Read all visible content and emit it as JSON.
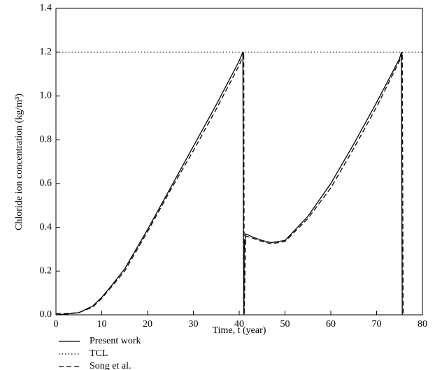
{
  "chart_data": {
    "type": "line",
    "xlabel": "Time, t (year)",
    "ylabel": "Chloride ion concentration (kg/m³)",
    "xlim": [
      0,
      80
    ],
    "ylim": [
      0,
      1.4
    ],
    "xticks": [
      0,
      10,
      20,
      30,
      40,
      50,
      60,
      70,
      80
    ],
    "yticks": [
      {
        "value": 0,
        "label": "0.0"
      },
      0.2,
      0.4,
      0.6,
      0.8,
      {
        "value": 1,
        "label": "1.0"
      },
      1.2,
      1.4
    ],
    "series": [
      {
        "name": "Present work",
        "color": "#000000",
        "dash": "solid",
        "x": [
          0,
          2,
          5,
          8,
          10,
          12,
          15,
          20,
          25,
          30,
          35,
          40,
          40.8,
          41,
          41.1,
          41.4,
          43,
          45,
          47,
          50,
          55,
          60,
          65,
          70,
          75,
          75.4,
          75.6
        ],
        "values": [
          0,
          0.003,
          0.01,
          0.04,
          0.08,
          0.13,
          0.21,
          0.39,
          0.58,
          0.77,
          0.96,
          1.16,
          1.2,
          0,
          0.3,
          0.37,
          0.355,
          0.34,
          0.33,
          0.34,
          0.45,
          0.6,
          0.78,
          0.97,
          1.17,
          1.2,
          0
        ]
      },
      {
        "name": "TCL",
        "color": "#000000",
        "dash": "dotted",
        "x": [
          0,
          80
        ],
        "values": [
          1.2,
          1.2
        ]
      },
      {
        "name": "Song et al.",
        "color": "#000000",
        "dash": "dashed",
        "x": [
          0,
          2,
          5,
          8,
          10,
          12,
          15,
          20,
          25,
          30,
          35,
          40,
          40.8,
          41,
          41.1,
          41.4,
          43,
          45,
          47,
          50,
          55,
          60,
          65,
          70,
          75,
          75.4,
          75.6,
          75.8
        ],
        "values": [
          0.005,
          0.006,
          0.01,
          0.035,
          0.075,
          0.125,
          0.2,
          0.38,
          0.57,
          0.75,
          0.94,
          1.14,
          1.18,
          1.2,
          0,
          0.36,
          0.35,
          0.335,
          0.325,
          0.335,
          0.44,
          0.58,
          0.76,
          0.95,
          1.16,
          1.18,
          1.2,
          0
        ]
      }
    ]
  }
}
